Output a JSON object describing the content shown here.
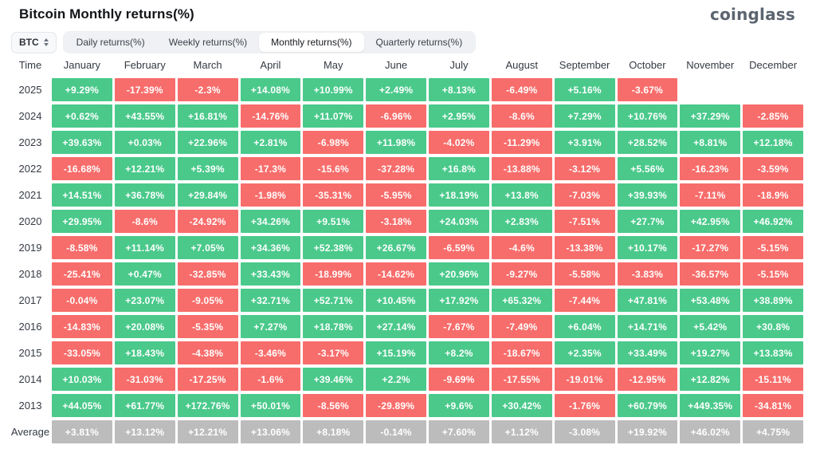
{
  "header": {
    "title": "Bitcoin Monthly returns(%)",
    "logo": "coinglass"
  },
  "controls": {
    "coin_select": {
      "value": "BTC",
      "icon": "updown-chevron-icon"
    },
    "tabs": [
      {
        "label": "Daily returns(%)",
        "active": false
      },
      {
        "label": "Weekly returns(%)",
        "active": false
      },
      {
        "label": "Monthly returns(%)",
        "active": true
      },
      {
        "label": "Quarterly returns(%)",
        "active": false
      }
    ]
  },
  "colors": {
    "positive": "#4ac98b",
    "negative": "#f76d6b",
    "average": "#bcbcbc"
  },
  "table": {
    "time_header": "Time",
    "months": [
      "January",
      "February",
      "March",
      "April",
      "May",
      "June",
      "July",
      "August",
      "September",
      "October",
      "November",
      "December"
    ],
    "rows": [
      {
        "label": "2025",
        "type": "year",
        "cells": [
          "+9.29%",
          "-17.39%",
          "-2.3%",
          "+14.08%",
          "+10.99%",
          "+2.49%",
          "+8.13%",
          "-6.49%",
          "+5.16%",
          "-3.67%",
          "",
          ""
        ]
      },
      {
        "label": "2024",
        "type": "year",
        "cells": [
          "+0.62%",
          "+43.55%",
          "+16.81%",
          "-14.76%",
          "+11.07%",
          "-6.96%",
          "+2.95%",
          "-8.6%",
          "+7.29%",
          "+10.76%",
          "+37.29%",
          "-2.85%"
        ]
      },
      {
        "label": "2023",
        "type": "year",
        "cells": [
          "+39.63%",
          "+0.03%",
          "+22.96%",
          "+2.81%",
          "-6.98%",
          "+11.98%",
          "-4.02%",
          "-11.29%",
          "+3.91%",
          "+28.52%",
          "+8.81%",
          "+12.18%"
        ]
      },
      {
        "label": "2022",
        "type": "year",
        "cells": [
          "-16.68%",
          "+12.21%",
          "+5.39%",
          "-17.3%",
          "-15.6%",
          "-37.28%",
          "+16.8%",
          "-13.88%",
          "-3.12%",
          "+5.56%",
          "-16.23%",
          "-3.59%"
        ]
      },
      {
        "label": "2021",
        "type": "year",
        "cells": [
          "+14.51%",
          "+36.78%",
          "+29.84%",
          "-1.98%",
          "-35.31%",
          "-5.95%",
          "+18.19%",
          "+13.8%",
          "-7.03%",
          "+39.93%",
          "-7.11%",
          "-18.9%"
        ]
      },
      {
        "label": "2020",
        "type": "year",
        "cells": [
          "+29.95%",
          "-8.6%",
          "-24.92%",
          "+34.26%",
          "+9.51%",
          "-3.18%",
          "+24.03%",
          "+2.83%",
          "-7.51%",
          "+27.7%",
          "+42.95%",
          "+46.92%"
        ]
      },
      {
        "label": "2019",
        "type": "year",
        "cells": [
          "-8.58%",
          "+11.14%",
          "+7.05%",
          "+34.36%",
          "+52.38%",
          "+26.67%",
          "-6.59%",
          "-4.6%",
          "-13.38%",
          "+10.17%",
          "-17.27%",
          "-5.15%"
        ]
      },
      {
        "label": "2018",
        "type": "year",
        "cells": [
          "-25.41%",
          "+0.47%",
          "-32.85%",
          "+33.43%",
          "-18.99%",
          "-14.62%",
          "+20.96%",
          "-9.27%",
          "-5.58%",
          "-3.83%",
          "-36.57%",
          "-5.15%"
        ]
      },
      {
        "label": "2017",
        "type": "year",
        "cells": [
          "-0.04%",
          "+23.07%",
          "-9.05%",
          "+32.71%",
          "+52.71%",
          "+10.45%",
          "+17.92%",
          "+65.32%",
          "-7.44%",
          "+47.81%",
          "+53.48%",
          "+38.89%"
        ]
      },
      {
        "label": "2016",
        "type": "year",
        "cells": [
          "-14.83%",
          "+20.08%",
          "-5.35%",
          "+7.27%",
          "+18.78%",
          "+27.14%",
          "-7.67%",
          "-7.49%",
          "+6.04%",
          "+14.71%",
          "+5.42%",
          "+30.8%"
        ]
      },
      {
        "label": "2015",
        "type": "year",
        "cells": [
          "-33.05%",
          "+18.43%",
          "-4.38%",
          "-3.46%",
          "-3.17%",
          "+15.19%",
          "+8.2%",
          "-18.67%",
          "+2.35%",
          "+33.49%",
          "+19.27%",
          "+13.83%"
        ]
      },
      {
        "label": "2014",
        "type": "year",
        "cells": [
          "+10.03%",
          "-31.03%",
          "-17.25%",
          "-1.6%",
          "+39.46%",
          "+2.2%",
          "-9.69%",
          "-17.55%",
          "-19.01%",
          "-12.95%",
          "+12.82%",
          "-15.11%"
        ]
      },
      {
        "label": "2013",
        "type": "year",
        "cells": [
          "+44.05%",
          "+61.77%",
          "+172.76%",
          "+50.01%",
          "-8.56%",
          "-29.89%",
          "+9.6%",
          "+30.42%",
          "-1.76%",
          "+60.79%",
          "+449.35%",
          "-34.81%"
        ]
      },
      {
        "label": "Average",
        "type": "average",
        "cells": [
          "+3.81%",
          "+13.12%",
          "+12.21%",
          "+13.06%",
          "+8.18%",
          "-0.14%",
          "+7.60%",
          "+1.12%",
          "-3.08%",
          "+19.92%",
          "+46.02%",
          "+4.75%"
        ]
      }
    ]
  }
}
